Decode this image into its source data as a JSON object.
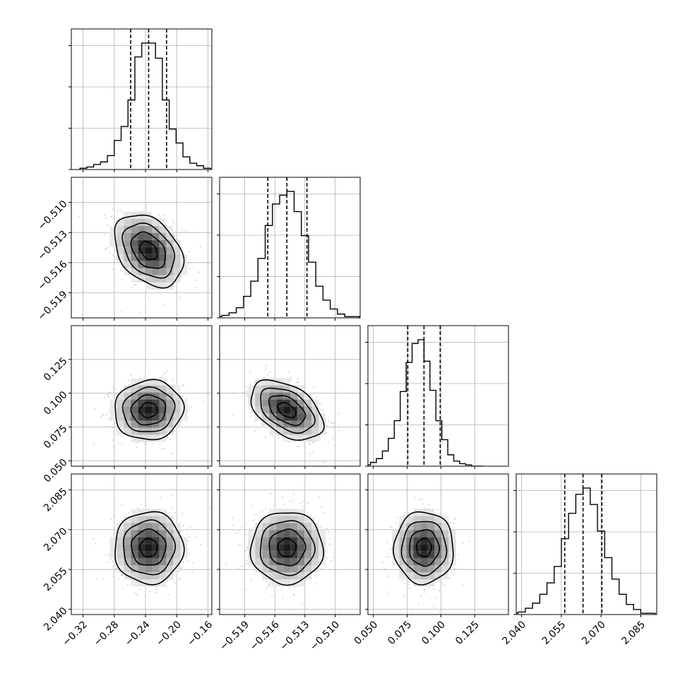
{
  "chart_data": {
    "type": "corner",
    "grid": true,
    "parameters": [
      {
        "range": [
          -0.335,
          -0.155
        ],
        "ticks": [
          -0.32,
          -0.28,
          -0.24,
          -0.2,
          -0.16
        ],
        "tick_labels": [
          "−0.32",
          "−0.28",
          "−0.24",
          "−0.20",
          "−0.16"
        ],
        "quantiles": [
          -0.259,
          -0.236,
          -0.213
        ],
        "mean": -0.236,
        "sigma": 0.022,
        "hist_counts": [
          1,
          2,
          4,
          6,
          11,
          23,
          34,
          55,
          89,
          100,
          100,
          88,
          55,
          32,
          21,
          10,
          5,
          3,
          1,
          0
        ]
      },
      {
        "range": [
          -0.5215,
          -0.5075
        ],
        "ticks": [
          -0.519,
          -0.516,
          -0.513,
          -0.51
        ],
        "tick_labels": [
          "−0.519",
          "−0.516",
          "−0.513",
          "−0.510"
        ],
        "quantiles": [
          -0.5167,
          -0.5148,
          -0.5128
        ],
        "mean": -0.5148,
        "sigma": 0.0018,
        "hist_counts": [
          1,
          2,
          4,
          8,
          17,
          29,
          47,
          73,
          90,
          97,
          100,
          84,
          65,
          44,
          25,
          14,
          7,
          3,
          1,
          1
        ]
      },
      {
        "range": [
          0.046,
          0.15
        ],
        "ticks": [
          0.05,
          0.075,
          0.1,
          0.125
        ],
        "tick_labels": [
          "0.050",
          "0.075",
          "0.100",
          "0.125"
        ],
        "quantiles": [
          0.0755,
          0.0875,
          0.0995
        ],
        "mean": 0.0875,
        "sigma": 0.011,
        "hist_counts": [
          1,
          3,
          6,
          12,
          22,
          36,
          59,
          82,
          97,
          100,
          83,
          60,
          36,
          21,
          9,
          4,
          2,
          1,
          0,
          0
        ]
      },
      {
        "range": [
          2.038,
          2.091
        ],
        "ticks": [
          2.04,
          2.055,
          2.07,
          2.085
        ],
        "tick_labels": [
          "2.040",
          "2.055",
          "2.070",
          "2.085"
        ],
        "quantiles": [
          2.0563,
          2.0632,
          2.0703
        ],
        "mean": 2.0632,
        "sigma": 0.0068,
        "hist_counts": [
          1,
          2,
          5,
          9,
          16,
          25,
          38,
          60,
          80,
          95,
          100,
          87,
          66,
          45,
          28,
          16,
          8,
          4,
          1,
          1
        ]
      }
    ],
    "correlations": [
      [
        0,
        1,
        -0.35
      ],
      [
        0,
        2,
        0.05
      ],
      [
        0,
        3,
        0.0
      ],
      [
        1,
        2,
        -0.45
      ],
      [
        1,
        3,
        0.0
      ],
      [
        2,
        3,
        0.0
      ]
    ]
  }
}
